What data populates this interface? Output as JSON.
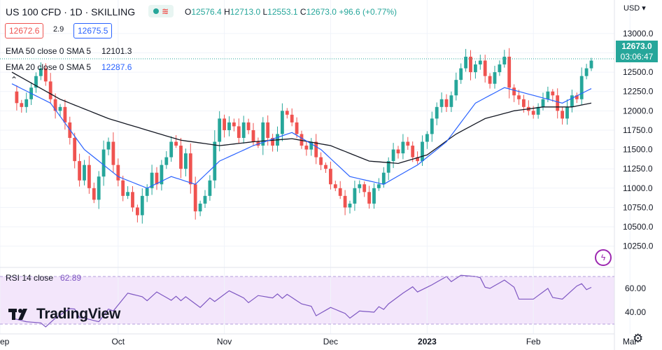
{
  "header": {
    "symbol": "US 100 CFD · 1D · SKILLING",
    "ohlc": {
      "o_label": "O",
      "o": "12576.4",
      "h_label": "H",
      "h": "12713.0",
      "l_label": "L",
      "l": "12553.1",
      "c_label": "C",
      "c": "12673.0",
      "change": "+96.6 (+0.77%)"
    },
    "bid": "12672.6",
    "spread": "2.9",
    "ask": "12675.5"
  },
  "indicators": [
    {
      "label": "EMA 50 close 0 SMA 5",
      "value": "12101.3",
      "color": "#131722"
    },
    {
      "label": "EMA 20 close 0 SMA 5",
      "value": "12287.6",
      "color": "#2962ff"
    }
  ],
  "rsi": {
    "label": "RSI 14 close",
    "value": "62.89",
    "color": "#7e57c2"
  },
  "logo": "TradingView",
  "price_axis": {
    "currency": "USD",
    "last_price": "12673.0",
    "countdown": "03:06:47"
  },
  "icons": {
    "collapse": "chevron-up-icon",
    "market": "market-status-icon",
    "bolt": "lightning-icon",
    "settings": "gear-icon",
    "logo": "tradingview-logo-icon"
  },
  "colors": {
    "up": "#26a69a",
    "down": "#ef5350",
    "ema20": "#2962ff",
    "ema50": "#131722",
    "rsi": "#7e57c2",
    "rsi_band": "#f3e6fb"
  },
  "chart_data": {
    "type": "candlestick",
    "title": "US 100 CFD · 1D · SKILLING",
    "y_ticks": [
      10250,
      10500,
      10750,
      11000,
      11250,
      11500,
      11750,
      12000,
      12250,
      12500,
      12750,
      13000
    ],
    "y_tick_labels": [
      "10250.0",
      "10500.0",
      "10750.0",
      "11000.0",
      "11250.0",
      "11500.0",
      "11750.0",
      "12000.0",
      "12250.0",
      "12500.0",
      "12750.0",
      "13000.0"
    ],
    "ylim": [
      10120,
      13180
    ],
    "x_labels": [
      "ep",
      "Oct",
      "Nov",
      "Dec",
      "2023",
      "Feb",
      "Mar"
    ],
    "x_label_day_index": [
      0,
      22,
      44,
      66,
      86,
      108,
      128
    ],
    "close_key_points": [
      [
        0,
        12250
      ],
      [
        1,
        12100
      ],
      [
        2,
        12050
      ],
      [
        3,
        12150
      ],
      [
        4,
        12300
      ],
      [
        5,
        12450
      ],
      [
        6,
        12550
      ],
      [
        7,
        12380
      ],
      [
        8,
        12150
      ],
      [
        9,
        12000
      ],
      [
        10,
        12050
      ],
      [
        11,
        11850
      ],
      [
        12,
        11650
      ],
      [
        13,
        11350
      ],
      [
        14,
        11100
      ],
      [
        15,
        11300
      ],
      [
        16,
        11000
      ],
      [
        17,
        10850
      ],
      [
        18,
        11150
      ],
      [
        19,
        11500
      ],
      [
        20,
        11600
      ],
      [
        21,
        11300
      ],
      [
        22,
        11100
      ],
      [
        23,
        10900
      ],
      [
        24,
        10950
      ],
      [
        25,
        10750
      ],
      [
        26,
        10650
      ],
      [
        27,
        10900
      ],
      [
        28,
        11000
      ],
      [
        29,
        11200
      ],
      [
        30,
        11050
      ],
      [
        31,
        11300
      ],
      [
        32,
        11400
      ],
      [
        33,
        11600
      ],
      [
        34,
        11550
      ],
      [
        35,
        11250
      ],
      [
        36,
        11450
      ],
      [
        37,
        11050
      ],
      [
        38,
        10700
      ],
      [
        39,
        10800
      ],
      [
        40,
        10900
      ],
      [
        41,
        11100
      ],
      [
        42,
        11600
      ],
      [
        43,
        11900
      ],
      [
        44,
        11750
      ],
      [
        45,
        11850
      ],
      [
        46,
        11800
      ],
      [
        47,
        11650
      ],
      [
        48,
        11850
      ],
      [
        49,
        11750
      ],
      [
        50,
        11600
      ],
      [
        51,
        11550
      ],
      [
        52,
        11850
      ],
      [
        53,
        11650
      ],
      [
        54,
        11550
      ],
      [
        55,
        11700
      ],
      [
        56,
        12000
      ],
      [
        57,
        11950
      ],
      [
        58,
        11850
      ],
      [
        59,
        11700
      ],
      [
        60,
        11550
      ],
      [
        61,
        11500
      ],
      [
        62,
        11600
      ],
      [
        63,
        11400
      ],
      [
        64,
        11300
      ],
      [
        65,
        11250
      ],
      [
        66,
        11050
      ],
      [
        67,
        11000
      ],
      [
        68,
        10900
      ],
      [
        69,
        10750
      ],
      [
        70,
        10800
      ],
      [
        71,
        11000
      ],
      [
        72,
        11050
      ],
      [
        73,
        10950
      ],
      [
        74,
        10800
      ],
      [
        75,
        11000
      ],
      [
        76,
        11050
      ],
      [
        77,
        11200
      ],
      [
        78,
        11350
      ],
      [
        79,
        11500
      ],
      [
        80,
        11450
      ],
      [
        81,
        11600
      ],
      [
        82,
        11550
      ],
      [
        83,
        11400
      ],
      [
        84,
        11350
      ],
      [
        85,
        11600
      ],
      [
        86,
        11700
      ],
      [
        87,
        11900
      ],
      [
        88,
        12050
      ],
      [
        89,
        12150
      ],
      [
        90,
        12050
      ],
      [
        91,
        12200
      ],
      [
        92,
        12400
      ],
      [
        93,
        12550
      ],
      [
        94,
        12700
      ],
      [
        95,
        12500
      ],
      [
        96,
        12600
      ],
      [
        97,
        12650
      ],
      [
        98,
        12450
      ],
      [
        99,
        12350
      ],
      [
        100,
        12500
      ],
      [
        101,
        12600
      ],
      [
        102,
        12700
      ],
      [
        103,
        12300
      ],
      [
        104,
        12200
      ],
      [
        105,
        12150
      ],
      [
        106,
        12050
      ],
      [
        107,
        12000
      ],
      [
        108,
        11950
      ],
      [
        109,
        12050
      ],
      [
        110,
        12150
      ],
      [
        111,
        12250
      ],
      [
        112,
        12200
      ],
      [
        113,
        12000
      ],
      [
        114,
        11900
      ],
      [
        115,
        12050
      ],
      [
        116,
        12200
      ],
      [
        117,
        12150
      ],
      [
        118,
        12450
      ],
      [
        119,
        12550
      ],
      [
        120,
        12650
      ]
    ],
    "ema20_key_points": [
      [
        0,
        12350
      ],
      [
        8,
        12100
      ],
      [
        15,
        11500
      ],
      [
        22,
        11150
      ],
      [
        28,
        11000
      ],
      [
        33,
        11150
      ],
      [
        38,
        11050
      ],
      [
        43,
        11350
      ],
      [
        50,
        11550
      ],
      [
        58,
        11720
      ],
      [
        64,
        11500
      ],
      [
        70,
        11150
      ],
      [
        77,
        11050
      ],
      [
        84,
        11300
      ],
      [
        90,
        11600
      ],
      [
        96,
        12100
      ],
      [
        102,
        12300
      ],
      [
        108,
        12200
      ],
      [
        114,
        12100
      ],
      [
        120,
        12287.6
      ]
    ],
    "ema50_key_points": [
      [
        0,
        12500
      ],
      [
        10,
        12150
      ],
      [
        20,
        11900
      ],
      [
        28,
        11750
      ],
      [
        35,
        11620
      ],
      [
        43,
        11550
      ],
      [
        50,
        11600
      ],
      [
        58,
        11640
      ],
      [
        66,
        11550
      ],
      [
        74,
        11350
      ],
      [
        80,
        11320
      ],
      [
        86,
        11430
      ],
      [
        92,
        11700
      ],
      [
        98,
        11900
      ],
      [
        104,
        12000
      ],
      [
        110,
        12050
      ],
      [
        116,
        12050
      ],
      [
        120,
        12101.3
      ]
    ],
    "rsi_series": {
      "name": "RSI 14 close",
      "ylim": [
        25,
        75
      ],
      "ticks": [
        40,
        60
      ],
      "tick_labels": [
        "40.00",
        "60.00"
      ],
      "bands": [
        30,
        70
      ],
      "key_points": [
        [
          0,
          38
        ],
        [
          3,
          32
        ],
        [
          6,
          28
        ],
        [
          9,
          36
        ],
        [
          12,
          41
        ],
        [
          15,
          37
        ],
        [
          18,
          31
        ],
        [
          21,
          44
        ],
        [
          24,
          56
        ],
        [
          27,
          50
        ],
        [
          30,
          58
        ],
        [
          33,
          48
        ],
        [
          36,
          55
        ],
        [
          39,
          43
        ],
        [
          42,
          52
        ],
        [
          45,
          58
        ],
        [
          48,
          49
        ],
        [
          51,
          55
        ],
        [
          54,
          50
        ],
        [
          57,
          57
        ],
        [
          60,
          46
        ],
        [
          63,
          40
        ],
        [
          66,
          44
        ],
        [
          69,
          36
        ],
        [
          72,
          42
        ],
        [
          75,
          38
        ],
        [
          78,
          49
        ],
        [
          81,
          55
        ],
        [
          84,
          60
        ],
        [
          87,
          63
        ],
        [
          90,
          67
        ],
        [
          93,
          72
        ],
        [
          96,
          68
        ],
        [
          99,
          62
        ],
        [
          102,
          66
        ],
        [
          105,
          54
        ],
        [
          108,
          51
        ],
        [
          111,
          57
        ],
        [
          114,
          52
        ],
        [
          117,
          60
        ],
        [
          120,
          62.89
        ]
      ]
    }
  }
}
